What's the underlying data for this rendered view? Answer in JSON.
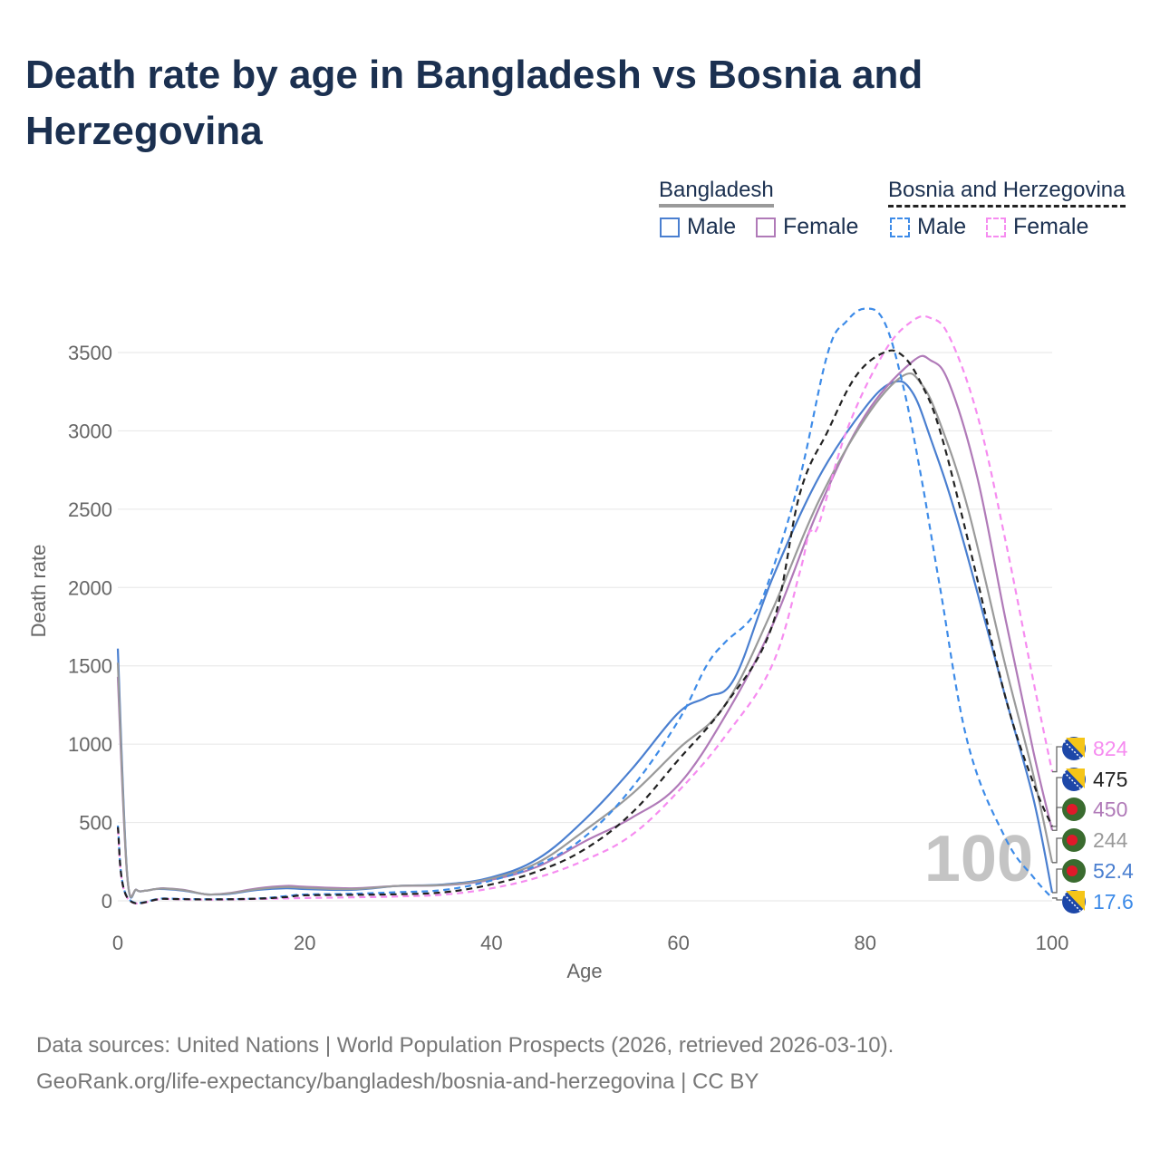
{
  "title": "Death rate by age in Bangladesh vs Bosnia and Herzegovina",
  "legend": {
    "group1": "Bangladesh",
    "group2": "Bosnia and Herzegovina",
    "male": "Male",
    "female": "Female"
  },
  "footer": {
    "line1": "Data sources: United Nations | World Population Prospects (2026, retrieved 2026-03-10).",
    "line2": "GeoRank.org/life-expectancy/bangladesh/bosnia-and-herzegovina | CC BY"
  },
  "colors": {
    "male": "#4a7fd0",
    "female": "#b07ab8",
    "male_ba": "#3d8be8",
    "female_ba": "#f68cf0",
    "total_bd": "#9a9a9a",
    "total_ba": "#222222"
  },
  "chart_data": {
    "type": "line",
    "xlabel": "Age",
    "ylabel": "Death rate",
    "xlim": [
      0,
      100
    ],
    "ylim": [
      0,
      3900
    ],
    "xticks": [
      "0",
      "20",
      "40",
      "60",
      "80",
      "100"
    ],
    "yticks": [
      "0",
      "500",
      "1000",
      "1500",
      "2000",
      "2500",
      "3000",
      "3500"
    ],
    "watermark": "100",
    "end_labels": [
      "824",
      "475",
      "450",
      "244",
      "52.4",
      "17.6"
    ],
    "series": [
      {
        "name": "Bangladesh Male",
        "color": "#4a7fd0",
        "dash": false,
        "points": [
          [
            0,
            1610
          ],
          [
            1,
            170
          ],
          [
            2,
            70
          ],
          [
            3,
            65
          ],
          [
            4,
            75
          ],
          [
            5,
            75
          ],
          [
            7,
            65
          ],
          [
            9,
            45
          ],
          [
            10,
            40
          ],
          [
            12,
            45
          ],
          [
            15,
            70
          ],
          [
            18,
            80
          ],
          [
            20,
            75
          ],
          [
            25,
            70
          ],
          [
            30,
            95
          ],
          [
            35,
            105
          ],
          [
            40,
            150
          ],
          [
            45,
            270
          ],
          [
            50,
            520
          ],
          [
            55,
            840
          ],
          [
            60,
            1200
          ],
          [
            63,
            1300
          ],
          [
            66,
            1420
          ],
          [
            70,
            2050
          ],
          [
            75,
            2700
          ],
          [
            80,
            3150
          ],
          [
            83,
            3310
          ],
          [
            85,
            3250
          ],
          [
            87,
            2950
          ],
          [
            90,
            2400
          ],
          [
            95,
            1300
          ],
          [
            98,
            650
          ],
          [
            100,
            52.4
          ]
        ]
      },
      {
        "name": "Bangladesh Female",
        "color": "#b07ab8",
        "dash": false,
        "points": [
          [
            0,
            1430
          ],
          [
            1,
            160
          ],
          [
            2,
            70
          ],
          [
            3,
            65
          ],
          [
            4,
            75
          ],
          [
            5,
            80
          ],
          [
            7,
            70
          ],
          [
            9,
            45
          ],
          [
            10,
            40
          ],
          [
            12,
            50
          ],
          [
            15,
            80
          ],
          [
            18,
            95
          ],
          [
            20,
            90
          ],
          [
            25,
            80
          ],
          [
            30,
            95
          ],
          [
            35,
            100
          ],
          [
            40,
            135
          ],
          [
            45,
            220
          ],
          [
            50,
            380
          ],
          [
            55,
            530
          ],
          [
            60,
            740
          ],
          [
            65,
            1180
          ],
          [
            70,
            1750
          ],
          [
            75,
            2500
          ],
          [
            80,
            3100
          ],
          [
            85,
            3440
          ],
          [
            87,
            3450
          ],
          [
            89,
            3300
          ],
          [
            92,
            2700
          ],
          [
            95,
            1800
          ],
          [
            98,
            950
          ],
          [
            100,
            450
          ]
        ]
      },
      {
        "name": "Bangladesh Total",
        "color": "#9a9a9a",
        "dash": false,
        "points": [
          [
            0,
            1520
          ],
          [
            1,
            165
          ],
          [
            2,
            70
          ],
          [
            3,
            65
          ],
          [
            4,
            75
          ],
          [
            5,
            78
          ],
          [
            7,
            68
          ],
          [
            9,
            45
          ],
          [
            10,
            40
          ],
          [
            12,
            48
          ],
          [
            15,
            75
          ],
          [
            18,
            88
          ],
          [
            20,
            83
          ],
          [
            25,
            75
          ],
          [
            30,
            95
          ],
          [
            35,
            102
          ],
          [
            40,
            142
          ],
          [
            45,
            245
          ],
          [
            50,
            450
          ],
          [
            55,
            680
          ],
          [
            60,
            970
          ],
          [
            65,
            1250
          ],
          [
            70,
            1850
          ],
          [
            75,
            2550
          ],
          [
            80,
            3080
          ],
          [
            84,
            3350
          ],
          [
            86,
            3300
          ],
          [
            88,
            3050
          ],
          [
            91,
            2500
          ],
          [
            95,
            1500
          ],
          [
            98,
            800
          ],
          [
            100,
            244
          ]
        ]
      },
      {
        "name": "Bosnia and Herzegovina Male",
        "color": "#3d8be8",
        "dash": true,
        "points": [
          [
            0,
            480
          ],
          [
            1,
            25
          ],
          [
            5,
            15
          ],
          [
            10,
            10
          ],
          [
            15,
            15
          ],
          [
            18,
            30
          ],
          [
            20,
            40
          ],
          [
            25,
            45
          ],
          [
            30,
            55
          ],
          [
            35,
            70
          ],
          [
            40,
            130
          ],
          [
            45,
            230
          ],
          [
            50,
            410
          ],
          [
            55,
            720
          ],
          [
            60,
            1150
          ],
          [
            63,
            1500
          ],
          [
            65,
            1650
          ],
          [
            68,
            1820
          ],
          [
            70,
            2100
          ],
          [
            73,
            2700
          ],
          [
            76,
            3500
          ],
          [
            78,
            3700
          ],
          [
            80,
            3780
          ],
          [
            82,
            3700
          ],
          [
            84,
            3300
          ],
          [
            86,
            2700
          ],
          [
            88,
            2000
          ],
          [
            91,
            1000
          ],
          [
            95,
            400
          ],
          [
            98,
            150
          ],
          [
            100,
            17.6
          ]
        ]
      },
      {
        "name": "Bosnia and Herzegovina Female",
        "color": "#f68cf0",
        "dash": true,
        "points": [
          [
            0,
            460
          ],
          [
            1,
            20
          ],
          [
            5,
            12
          ],
          [
            10,
            8
          ],
          [
            15,
            12
          ],
          [
            20,
            18
          ],
          [
            25,
            22
          ],
          [
            30,
            28
          ],
          [
            35,
            40
          ],
          [
            40,
            80
          ],
          [
            45,
            150
          ],
          [
            50,
            260
          ],
          [
            55,
            420
          ],
          [
            60,
            700
          ],
          [
            65,
            1050
          ],
          [
            70,
            1500
          ],
          [
            73,
            2100
          ],
          [
            74,
            2350
          ],
          [
            75,
            2400
          ],
          [
            78,
            3000
          ],
          [
            82,
            3500
          ],
          [
            85,
            3700
          ],
          [
            87,
            3720
          ],
          [
            89,
            3600
          ],
          [
            92,
            3100
          ],
          [
            95,
            2300
          ],
          [
            98,
            1400
          ],
          [
            100,
            824
          ]
        ]
      },
      {
        "name": "Bosnia and Herzegovina Total",
        "color": "#222222",
        "dash": true,
        "points": [
          [
            0,
            470
          ],
          [
            1,
            22
          ],
          [
            5,
            13
          ],
          [
            10,
            9
          ],
          [
            15,
            14
          ],
          [
            18,
            24
          ],
          [
            20,
            35
          ],
          [
            25,
            38
          ],
          [
            30,
            42
          ],
          [
            35,
            55
          ],
          [
            40,
            105
          ],
          [
            45,
            190
          ],
          [
            50,
            330
          ],
          [
            55,
            560
          ],
          [
            60,
            900
          ],
          [
            65,
            1250
          ],
          [
            70,
            1750
          ],
          [
            73,
            2600
          ],
          [
            76,
            3000
          ],
          [
            79,
            3350
          ],
          [
            82,
            3500
          ],
          [
            84,
            3480
          ],
          [
            86,
            3300
          ],
          [
            88,
            3000
          ],
          [
            91,
            2300
          ],
          [
            95,
            1300
          ],
          [
            98,
            750
          ],
          [
            100,
            475
          ]
        ]
      }
    ]
  }
}
